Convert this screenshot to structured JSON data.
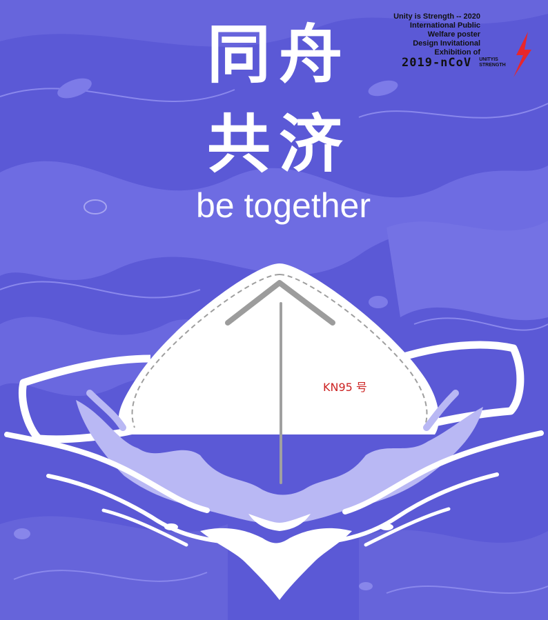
{
  "title": {
    "line1": "同舟",
    "line2": "共济"
  },
  "subtitle": "be together",
  "exhibition": {
    "lines": [
      "Unity is Strength -- 2020",
      "International Public",
      "Welfare poster",
      "Design Invitational",
      "Exhibition of"
    ],
    "code": "2019-nCoV",
    "badge_line1": "UNITYIS",
    "badge_line2": "STRENGTH"
  },
  "mask": {
    "label": "KN95 号"
  },
  "colors": {
    "background": "#5b59d6",
    "wave_light": "#7a78e6",
    "wave_pale": "#b9b8f4",
    "mask": "#ffffff",
    "accent": "#e8262b"
  }
}
